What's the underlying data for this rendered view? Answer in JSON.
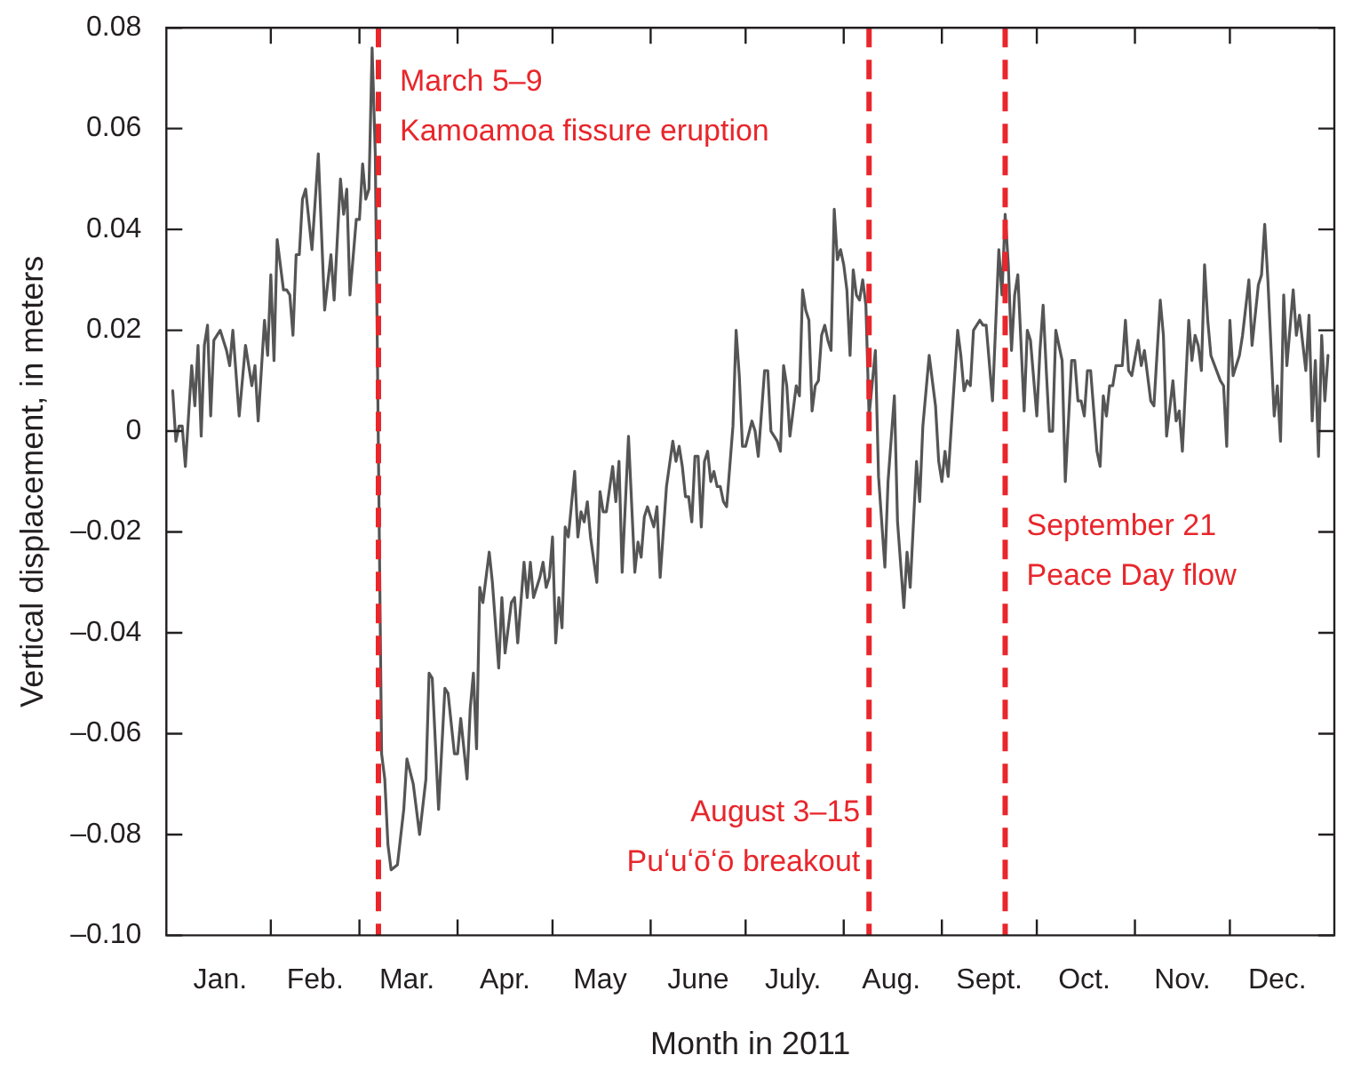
{
  "chart_data": {
    "type": "line",
    "xlabel": "Month in 2011",
    "ylabel": "Vertical displacement, in meters",
    "color": "#555555",
    "xlim": [
      "2010-12-30",
      "2012-01-03"
    ],
    "xticks": [
      {
        "value": "2011-01-16",
        "label": "Jan."
      },
      {
        "value": "2011-02-01",
        "label": null
      },
      {
        "value": "2011-02-15",
        "label": "Feb."
      },
      {
        "value": "2011-03-01",
        "label": null
      },
      {
        "value": "2011-03-16",
        "label": "Mar."
      },
      {
        "value": "2011-04-01",
        "label": null
      },
      {
        "value": "2011-04-16",
        "label": "Apr."
      },
      {
        "value": "2011-05-01",
        "label": null
      },
      {
        "value": "2011-05-16",
        "label": "May"
      },
      {
        "value": "2011-06-01",
        "label": null
      },
      {
        "value": "2011-06-16",
        "label": "June"
      },
      {
        "value": "2011-07-01",
        "label": null
      },
      {
        "value": "2011-07-16",
        "label": "July."
      },
      {
        "value": "2011-08-01",
        "label": null
      },
      {
        "value": "2011-08-16",
        "label": "Aug."
      },
      {
        "value": "2011-09-01",
        "label": null
      },
      {
        "value": "2011-09-16",
        "label": "Sept."
      },
      {
        "value": "2011-10-01",
        "label": null
      },
      {
        "value": "2011-10-16",
        "label": "Oct."
      },
      {
        "value": "2011-11-01",
        "label": null
      },
      {
        "value": "2011-11-16",
        "label": "Nov."
      },
      {
        "value": "2011-12-01",
        "label": null
      },
      {
        "value": "2011-12-16",
        "label": "Dec."
      }
    ],
    "ylim": [
      -0.1,
      0.08
    ],
    "yticks": [
      {
        "value": -0.1,
        "label": "–0.10"
      },
      {
        "value": -0.08,
        "label": "–0.08"
      },
      {
        "value": -0.06,
        "label": "–0.06"
      },
      {
        "value": -0.04,
        "label": "–0.04"
      },
      {
        "value": -0.02,
        "label": "–0.02"
      },
      0,
      0.02,
      0.04,
      0.06,
      0.08
    ],
    "ref_lines": [
      {
        "axis": "x",
        "value": "2011-03-07",
        "label": "March 5–9\nKamoamoa fissure eruption",
        "color": "#e8262b",
        "line_style": "dashed"
      },
      {
        "axis": "x",
        "value": "2011-08-09",
        "label": "August 3–15\nPuʻuʻōʻō breakout",
        "color": "#e8262b",
        "line_style": "dashed"
      },
      {
        "axis": "x",
        "value": "2011-09-21",
        "label": "September 21\nPeace Day flow",
        "color": "#e8262b",
        "line_style": "dashed"
      }
    ],
    "x": [
      "2011-01-01",
      "2011-01-02",
      "2011-01-03",
      "2011-01-04",
      "2011-01-05",
      "2011-01-07",
      "2011-01-08",
      "2011-01-09",
      "2011-01-10",
      "2011-01-11",
      "2011-01-12",
      "2011-01-13",
      "2011-01-14",
      "2011-01-16",
      "2011-01-18",
      "2011-01-19",
      "2011-01-20",
      "2011-01-22",
      "2011-01-24",
      "2011-01-26",
      "2011-01-27",
      "2011-01-28",
      "2011-01-30",
      "2011-01-31",
      "2011-02-01",
      "2011-02-02",
      "2011-02-03",
      "2011-02-05",
      "2011-02-06",
      "2011-02-07",
      "2011-02-08",
      "2011-02-09",
      "2011-02-10",
      "2011-02-11",
      "2011-02-12",
      "2011-02-14",
      "2011-02-16",
      "2011-02-18",
      "2011-02-20",
      "2011-02-21",
      "2011-02-23",
      "2011-02-24",
      "2011-02-25",
      "2011-02-26",
      "2011-02-28",
      "2011-03-01",
      "2011-03-02",
      "2011-03-03",
      "2011-03-04",
      "2011-03-05",
      "2011-03-06",
      "2011-03-08",
      "2011-03-09",
      "2011-03-10",
      "2011-03-11",
      "2011-03-13",
      "2011-03-15",
      "2011-03-16",
      "2011-03-18",
      "2011-03-20",
      "2011-03-22",
      "2011-03-23",
      "2011-03-24",
      "2011-03-26",
      "2011-03-28",
      "2011-03-29",
      "2011-03-31",
      "2011-04-01",
      "2011-04-02",
      "2011-04-04",
      "2011-04-05",
      "2011-04-06",
      "2011-04-07",
      "2011-04-08",
      "2011-04-09",
      "2011-04-11",
      "2011-04-12",
      "2011-04-14",
      "2011-04-15",
      "2011-04-16",
      "2011-04-18",
      "2011-04-19",
      "2011-04-20",
      "2011-04-22",
      "2011-04-23",
      "2011-04-24",
      "2011-04-25",
      "2011-04-27",
      "2011-04-28",
      "2011-04-29",
      "2011-04-30",
      "2011-05-01",
      "2011-05-02",
      "2011-05-03",
      "2011-05-04",
      "2011-05-05",
      "2011-05-06",
      "2011-05-08",
      "2011-05-09",
      "2011-05-10",
      "2011-05-11",
      "2011-05-12",
      "2011-05-13",
      "2011-05-15",
      "2011-05-16",
      "2011-05-17",
      "2011-05-18",
      "2011-05-20",
      "2011-05-21",
      "2011-05-22",
      "2011-05-23",
      "2011-05-25",
      "2011-05-27",
      "2011-05-28",
      "2011-05-29",
      "2011-05-30",
      "2011-05-31",
      "2011-06-02",
      "2011-06-03",
      "2011-06-04",
      "2011-06-06",
      "2011-06-08",
      "2011-06-09",
      "2011-06-10",
      "2011-06-11",
      "2011-06-12",
      "2011-06-13",
      "2011-06-14",
      "2011-06-15",
      "2011-06-16",
      "2011-06-17",
      "2011-06-18",
      "2011-06-19",
      "2011-06-20",
      "2011-06-21",
      "2011-06-22",
      "2011-06-23",
      "2011-06-24",
      "2011-06-25",
      "2011-06-27",
      "2011-06-28",
      "2011-06-29",
      "2011-06-30",
      "2011-07-01",
      "2011-07-03",
      "2011-07-04",
      "2011-07-05",
      "2011-07-07",
      "2011-07-08",
      "2011-07-09",
      "2011-07-11",
      "2011-07-12",
      "2011-07-13",
      "2011-07-14",
      "2011-07-15",
      "2011-07-17",
      "2011-07-18",
      "2011-07-19",
      "2011-07-20",
      "2011-07-21",
      "2011-07-22",
      "2011-07-23",
      "2011-07-24",
      "2011-07-25",
      "2011-07-26",
      "2011-07-27",
      "2011-07-28",
      "2011-07-29",
      "2011-07-30",
      "2011-07-31",
      "2011-08-01",
      "2011-08-02",
      "2011-08-03",
      "2011-08-04",
      "2011-08-05",
      "2011-08-06",
      "2011-08-07",
      "2011-08-08",
      "2011-08-09",
      "2011-08-11",
      "2011-08-12",
      "2011-08-14",
      "2011-08-15",
      "2011-08-17",
      "2011-08-18",
      "2011-08-20",
      "2011-08-21",
      "2011-08-22",
      "2011-08-24",
      "2011-08-25",
      "2011-08-26",
      "2011-08-28",
      "2011-08-30",
      "2011-08-31",
      "2011-09-01",
      "2011-09-02",
      "2011-09-03",
      "2011-09-04",
      "2011-09-06",
      "2011-09-07",
      "2011-09-08",
      "2011-09-09",
      "2011-09-10",
      "2011-09-11",
      "2011-09-13",
      "2011-09-14",
      "2011-09-15",
      "2011-09-17",
      "2011-09-19",
      "2011-09-20",
      "2011-09-21",
      "2011-09-22",
      "2011-09-23",
      "2011-09-24",
      "2011-09-25",
      "2011-09-27",
      "2011-09-28",
      "2011-09-29",
      "2011-10-01",
      "2011-10-02",
      "2011-10-03",
      "2011-10-04",
      "2011-10-05",
      "2011-10-06",
      "2011-10-07",
      "2011-10-09",
      "2011-10-10",
      "2011-10-12",
      "2011-10-13",
      "2011-10-14",
      "2011-10-15",
      "2011-10-16",
      "2011-10-17",
      "2011-10-18",
      "2011-10-20",
      "2011-10-21",
      "2011-10-22",
      "2011-10-23",
      "2011-10-24",
      "2011-10-25",
      "2011-10-26",
      "2011-10-28",
      "2011-10-29",
      "2011-10-30",
      "2011-10-31",
      "2011-11-02",
      "2011-11-03",
      "2011-11-04",
      "2011-11-06",
      "2011-11-07",
      "2011-11-09",
      "2011-11-10",
      "2011-11-11",
      "2011-11-13",
      "2011-11-14",
      "2011-11-15",
      "2011-11-16",
      "2011-11-18",
      "2011-11-19",
      "2011-11-20",
      "2011-11-21",
      "2011-11-22",
      "2011-11-23",
      "2011-11-24",
      "2011-11-25",
      "2011-11-28",
      "2011-11-29",
      "2011-11-30",
      "2011-12-01",
      "2011-12-02",
      "2011-12-04",
      "2011-12-05",
      "2011-12-07",
      "2011-12-08",
      "2011-12-10",
      "2011-12-11",
      "2011-12-12",
      "2011-12-13",
      "2011-12-15",
      "2011-12-16",
      "2011-12-17",
      "2011-12-18",
      "2011-12-19",
      "2011-12-21",
      "2011-12-22",
      "2011-12-23",
      "2011-12-25",
      "2011-12-26",
      "2011-12-27",
      "2011-12-28",
      "2011-12-29",
      "2011-12-30",
      "2011-12-31",
      "2012-01-01"
    ],
    "values": [
      0.008,
      -0.002,
      0.001,
      0.001,
      -0.007,
      0.013,
      0.005,
      0.017,
      -0.001,
      0.017,
      0.021,
      0.003,
      0.018,
      0.02,
      0.016,
      0.013,
      0.02,
      0.003,
      0.017,
      0.009,
      0.013,
      0.002,
      0.022,
      0.015,
      0.031,
      0.014,
      0.038,
      0.028,
      0.028,
      0.027,
      0.019,
      0.035,
      0.035,
      0.046,
      0.048,
      0.036,
      0.055,
      0.024,
      0.035,
      0.026,
      0.05,
      0.043,
      0.048,
      0.027,
      0.042,
      0.042,
      0.053,
      0.046,
      0.048,
      0.076,
      0.055,
      -0.064,
      -0.069,
      -0.082,
      -0.087,
      -0.086,
      -0.075,
      -0.065,
      -0.07,
      -0.08,
      -0.069,
      -0.048,
      -0.049,
      -0.075,
      -0.051,
      -0.052,
      -0.064,
      -0.064,
      -0.057,
      -0.069,
      -0.055,
      -0.048,
      -0.063,
      -0.031,
      -0.034,
      -0.024,
      -0.03,
      -0.047,
      -0.033,
      -0.044,
      -0.034,
      -0.033,
      -0.042,
      -0.026,
      -0.033,
      -0.026,
      -0.033,
      -0.029,
      -0.026,
      -0.031,
      -0.029,
      -0.021,
      -0.042,
      -0.033,
      -0.039,
      -0.019,
      -0.021,
      -0.008,
      -0.021,
      -0.016,
      -0.018,
      -0.014,
      -0.021,
      -0.03,
      -0.012,
      -0.016,
      -0.016,
      -0.007,
      -0.014,
      -0.006,
      -0.028,
      -0.001,
      -0.028,
      -0.022,
      -0.025,
      -0.017,
      -0.015,
      -0.019,
      -0.015,
      -0.029,
      -0.011,
      -0.002,
      -0.006,
      -0.003,
      -0.007,
      -0.013,
      -0.013,
      -0.018,
      -0.005,
      -0.005,
      -0.019,
      -0.006,
      -0.004,
      -0.01,
      -0.008,
      -0.011,
      -0.011,
      -0.014,
      -0.015,
      0.001,
      0.02,
      0.011,
      -0.003,
      -0.003,
      0.002,
      0.0,
      -0.005,
      0.012,
      0.012,
      0.0,
      -0.002,
      -0.004,
      0.013,
      0.009,
      -0.001,
      0.009,
      0.007,
      0.028,
      0.024,
      0.022,
      0.004,
      0.009,
      0.01,
      0.019,
      0.021,
      0.018,
      0.016,
      0.044,
      0.034,
      0.036,
      0.033,
      0.028,
      0.015,
      0.032,
      0.027,
      0.026,
      0.03,
      0.025,
      0.003,
      0.016,
      -0.009,
      -0.027,
      -0.01,
      0.007,
      -0.018,
      -0.035,
      -0.024,
      -0.031,
      -0.006,
      -0.014,
      0.001,
      0.015,
      0.005,
      -0.006,
      -0.01,
      -0.004,
      -0.009,
      0.001,
      0.02,
      0.015,
      0.008,
      0.01,
      0.009,
      0.02,
      0.022,
      0.021,
      0.021,
      0.006,
      0.036,
      0.027,
      0.043,
      0.033,
      0.016,
      0.027,
      0.031,
      0.004,
      0.02,
      0.018,
      0.003,
      0.016,
      0.025,
      0.012,
      0.0,
      0.0,
      0.02,
      0.014,
      -0.01,
      0.014,
      0.014,
      0.006,
      0.006,
      0.003,
      0.012,
      0.012,
      -0.004,
      -0.007,
      0.007,
      0.003,
      0.009,
      0.009,
      0.013,
      0.013,
      0.022,
      0.012,
      0.011,
      0.018,
      0.013,
      0.016,
      0.006,
      0.005,
      0.026,
      0.019,
      -0.001,
      0.01,
      0.002,
      0.004,
      -0.004,
      0.022,
      0.014,
      0.019,
      0.017,
      0.012,
      0.033,
      0.022,
      0.015,
      0.01,
      0.009,
      -0.003,
      0.022,
      0.011,
      0.015,
      0.019,
      0.03,
      0.017,
      0.029,
      0.031,
      0.041,
      0.03,
      0.003,
      0.009,
      -0.002,
      0.027,
      0.013,
      0.028,
      0.019,
      0.023,
      0.012,
      0.023,
      0.002,
      0.014,
      -0.005,
      0.019,
      0.006,
      0.015
    ]
  }
}
